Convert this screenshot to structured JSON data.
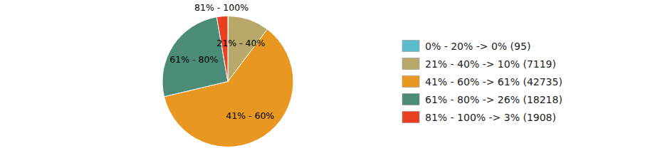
{
  "chart_data": {
    "type": "pie",
    "categories": [
      "0% - 20% -> 0% (95)",
      "21% - 40% -> 10% (7119)",
      "41% - 60% -> 61% (42735)",
      "61% - 80% -> 26% (18218)",
      "81% - 100% -> 3% (1908)"
    ],
    "values": [
      95,
      7119,
      42735,
      18218,
      1908
    ],
    "colors": [
      "#5bbccc",
      "#b8a86a",
      "#e89820",
      "#4a8c78",
      "#e84020"
    ],
    "slice_labels": [
      null,
      "21% - 40%",
      "41% - 60%",
      "61% - 80%",
      "81% - 100%"
    ],
    "legend": "right"
  }
}
